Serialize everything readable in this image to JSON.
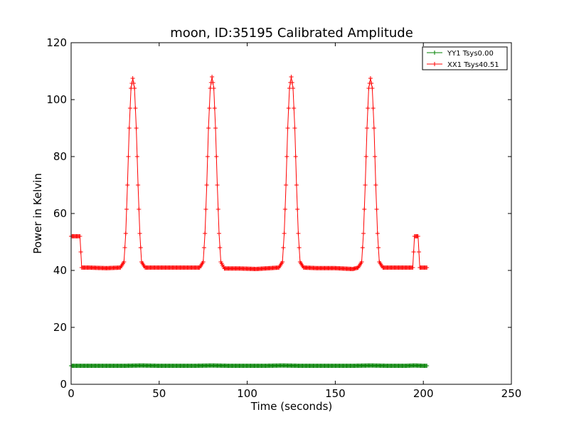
{
  "chart_data": {
    "type": "line",
    "title": "moon, ID:35195 Calibrated Amplitude",
    "xlabel": "Time (seconds)",
    "ylabel": "Power in Kelvin",
    "xlim": [
      0,
      250
    ],
    "ylim": [
      0,
      120
    ],
    "xticks": [
      "0",
      "50",
      "100",
      "150",
      "200",
      "250"
    ],
    "yticks": [
      "0",
      "20",
      "40",
      "60",
      "80",
      "100",
      "120"
    ],
    "grid": false,
    "legend_position": "top-right",
    "series": [
      {
        "name": "YY1 Tsys0.00",
        "color": "#008000",
        "marker": "plus",
        "x": [
          0,
          10,
          20,
          30,
          40,
          50,
          60,
          70,
          80,
          90,
          100,
          110,
          120,
          130,
          140,
          150,
          160,
          170,
          180,
          190,
          195,
          200,
          202
        ],
        "y": [
          6.5,
          6.5,
          6.5,
          6.5,
          6.6,
          6.5,
          6.5,
          6.5,
          6.6,
          6.5,
          6.5,
          6.5,
          6.6,
          6.5,
          6.5,
          6.5,
          6.5,
          6.6,
          6.5,
          6.5,
          6.6,
          6.5,
          6.5
        ]
      },
      {
        "name": "XX1 Tsys40.51",
        "color": "#ff0000",
        "marker": "plus",
        "x": [
          0,
          5,
          6,
          10,
          20,
          28,
          30,
          31,
          32,
          33,
          34,
          35,
          36,
          37,
          38,
          39,
          40,
          42,
          50,
          60,
          70,
          73,
          75,
          76,
          77,
          78,
          79,
          80,
          81,
          82,
          83,
          84,
          85,
          87,
          95,
          105,
          118,
          120,
          121,
          122,
          123,
          124,
          125,
          126,
          127,
          128,
          129,
          130,
          132,
          140,
          150,
          160,
          163,
          165,
          166,
          167,
          168,
          169,
          170,
          171,
          172,
          173,
          174,
          175,
          177,
          185,
          194,
          195,
          197,
          198,
          199,
          200,
          202
        ],
        "y": [
          52,
          52,
          41,
          41,
          40.8,
          41,
          43,
          53,
          70,
          90,
          104,
          107.5,
          104,
          90,
          70,
          53,
          43,
          41,
          41,
          41,
          41,
          41,
          43,
          53,
          70,
          90,
          104,
          108,
          104,
          90,
          70,
          53,
          43,
          40.7,
          40.7,
          40.5,
          41,
          43,
          53,
          70,
          90,
          104,
          108,
          104,
          90,
          70,
          53,
          43,
          41,
          40.8,
          40.8,
          40.5,
          41,
          43,
          53,
          70,
          90,
          104,
          107.5,
          104,
          90,
          70,
          53,
          43,
          41,
          41,
          41,
          52,
          52,
          41,
          41,
          41,
          41
        ]
      }
    ]
  }
}
